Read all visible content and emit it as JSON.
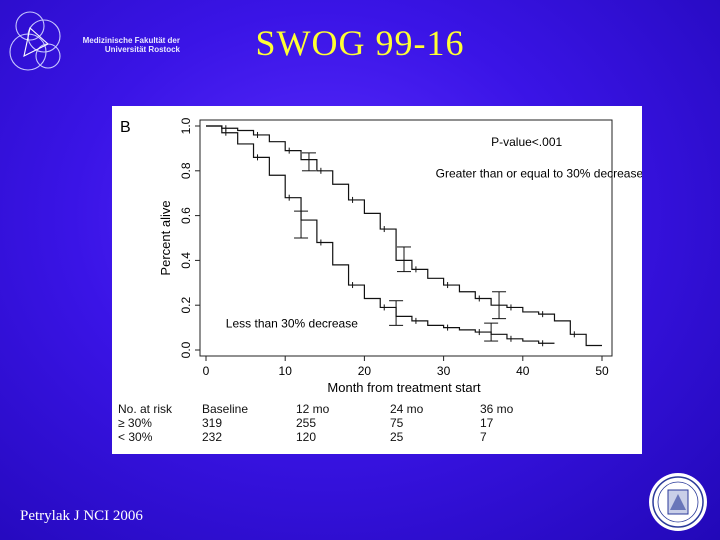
{
  "header": {
    "logo_line1": "Medizinische Fakultät der",
    "logo_line2": "Universität Rostock",
    "title": "SWOG 99-16"
  },
  "footer": {
    "citation": "Petrylak J NCI 2006"
  },
  "colors": {
    "title": "#ffff33",
    "curve": "#111111",
    "background": "#3a14e6"
  },
  "chart_data": {
    "type": "line",
    "panel_label": "B",
    "xlabel": "Month from treatment start",
    "ylabel": "Percent alive",
    "xlim": [
      0,
      50
    ],
    "ylim": [
      0.0,
      1.0
    ],
    "xticks": [
      "0",
      "10",
      "20",
      "30",
      "40",
      "50"
    ],
    "yticks": [
      "0.0",
      "0.2",
      "0.4",
      "0.6",
      "0.8",
      "1.0"
    ],
    "annotation_pvalue": "P-value<.001",
    "series": [
      {
        "name": "Greater than or equal to 30% decrease",
        "points": [
          [
            0,
            1.0
          ],
          [
            2,
            0.99
          ],
          [
            4,
            0.98
          ],
          [
            6,
            0.96
          ],
          [
            8,
            0.93
          ],
          [
            10,
            0.89
          ],
          [
            12,
            0.85
          ],
          [
            14,
            0.8
          ],
          [
            16,
            0.74
          ],
          [
            18,
            0.67
          ],
          [
            20,
            0.61
          ],
          [
            22,
            0.54
          ],
          [
            24,
            0.4
          ],
          [
            26,
            0.36
          ],
          [
            28,
            0.32
          ],
          [
            30,
            0.29
          ],
          [
            32,
            0.26
          ],
          [
            34,
            0.23
          ],
          [
            36,
            0.2
          ],
          [
            38,
            0.19
          ],
          [
            40,
            0.17
          ],
          [
            42,
            0.16
          ],
          [
            44,
            0.13
          ],
          [
            46,
            0.07
          ],
          [
            48,
            0.02
          ],
          [
            50,
            0.02
          ]
        ],
        "error_bars": [
          {
            "x": 13,
            "lo": 0.8,
            "hi": 0.88
          },
          {
            "x": 25,
            "lo": 0.35,
            "hi": 0.46
          },
          {
            "x": 37,
            "lo": 0.14,
            "hi": 0.26
          }
        ]
      },
      {
        "name": "Less than 30% decrease",
        "points": [
          [
            0,
            1.0
          ],
          [
            2,
            0.97
          ],
          [
            4,
            0.92
          ],
          [
            6,
            0.86
          ],
          [
            8,
            0.78
          ],
          [
            10,
            0.68
          ],
          [
            12,
            0.58
          ],
          [
            14,
            0.48
          ],
          [
            16,
            0.38
          ],
          [
            18,
            0.29
          ],
          [
            20,
            0.23
          ],
          [
            22,
            0.19
          ],
          [
            24,
            0.15
          ],
          [
            26,
            0.13
          ],
          [
            28,
            0.11
          ],
          [
            30,
            0.1
          ],
          [
            32,
            0.09
          ],
          [
            34,
            0.08
          ],
          [
            36,
            0.07
          ],
          [
            38,
            0.05
          ],
          [
            40,
            0.04
          ],
          [
            42,
            0.03
          ],
          [
            44,
            0.03
          ]
        ],
        "error_bars": [
          {
            "x": 12,
            "lo": 0.5,
            "hi": 0.62
          },
          {
            "x": 24,
            "lo": 0.11,
            "hi": 0.22
          },
          {
            "x": 36,
            "lo": 0.04,
            "hi": 0.12
          }
        ]
      }
    ],
    "risk_table": {
      "header": [
        "No. at risk",
        "Baseline",
        "12 mo",
        "24 mo",
        "36 mo"
      ],
      "rows": [
        [
          "≥ 30%",
          "319",
          "255",
          "75",
          "17"
        ],
        [
          "< 30%",
          "232",
          "120",
          "25",
          "7"
        ]
      ]
    }
  }
}
